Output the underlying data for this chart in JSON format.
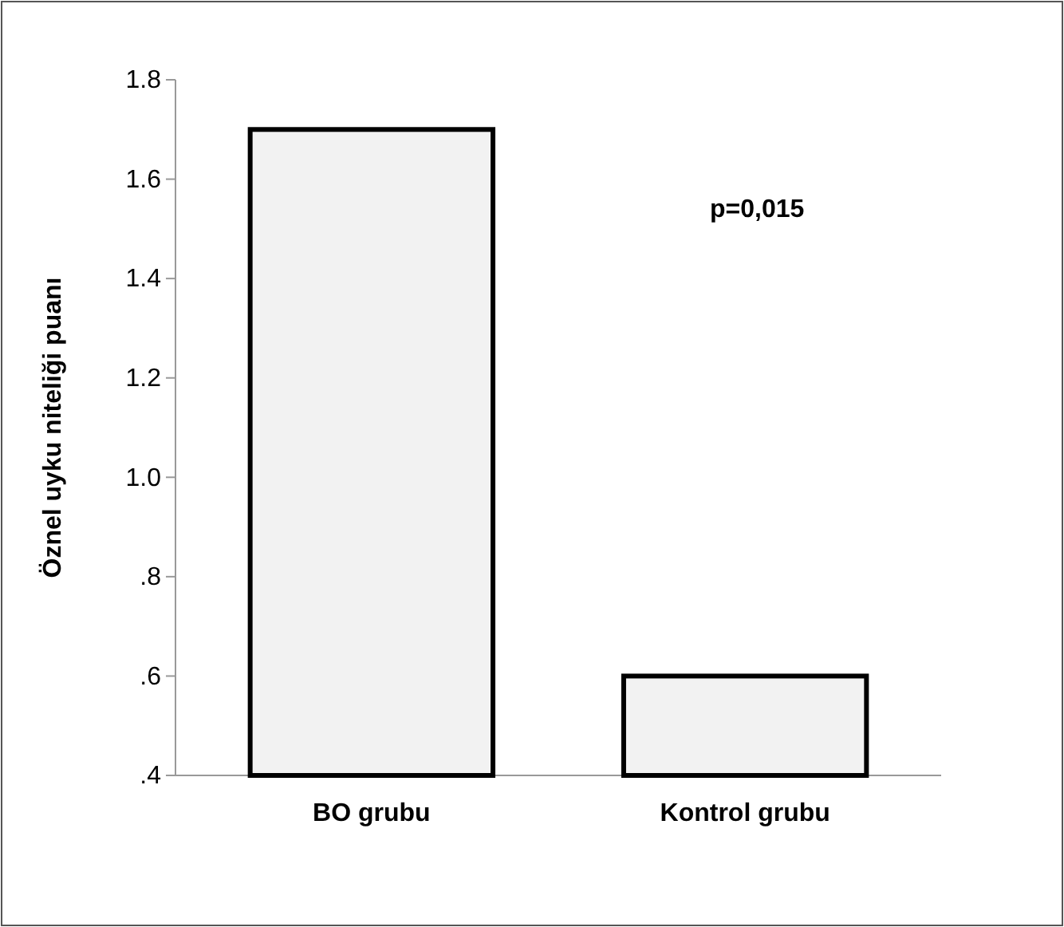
{
  "chart_data": {
    "type": "bar",
    "ylabel": "Öznel uyku niteliği puanı",
    "categories": [
      "BO grubu",
      "Kontrol grubu"
    ],
    "values": [
      1.7,
      0.6
    ],
    "color": "#f2f2f2",
    "ylim": [
      0.4,
      1.8
    ],
    "yticks": [
      {
        "value": 0.4,
        "label": ".4"
      },
      {
        "value": 0.6,
        "label": ".6"
      },
      {
        "value": 0.8,
        "label": ".8"
      },
      {
        "value": 1,
        "label": "1.0"
      },
      1.2,
      1.4,
      1.6,
      1.8
    ],
    "annotations": [
      "p=0,015"
    ],
    "grid": false
  }
}
